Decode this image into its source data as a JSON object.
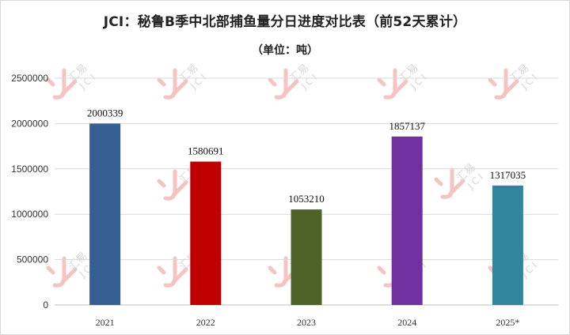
{
  "chart_data": {
    "type": "bar",
    "title": "JCI：秘鲁B季中北部捕鱼量分日进度对比表（前52天累计）",
    "subtitle": "（单位：吨）",
    "xlabel": "",
    "ylabel": "",
    "categories": [
      "2021",
      "2022",
      "2023",
      "2024",
      "2025*"
    ],
    "values": [
      2000339,
      1580691,
      1053210,
      1857137,
      1317035
    ],
    "colors": [
      "#366092",
      "#c00000",
      "#4f6228",
      "#7030a0",
      "#31859c"
    ],
    "ylim": [
      0,
      2500000
    ],
    "yticks": [
      "0",
      "500000",
      "1000000",
      "1500000",
      "2000000",
      "2500000"
    ],
    "grid": true,
    "legend": "none"
  },
  "watermark": {
    "text": "汇易",
    "sub": "JCI"
  }
}
